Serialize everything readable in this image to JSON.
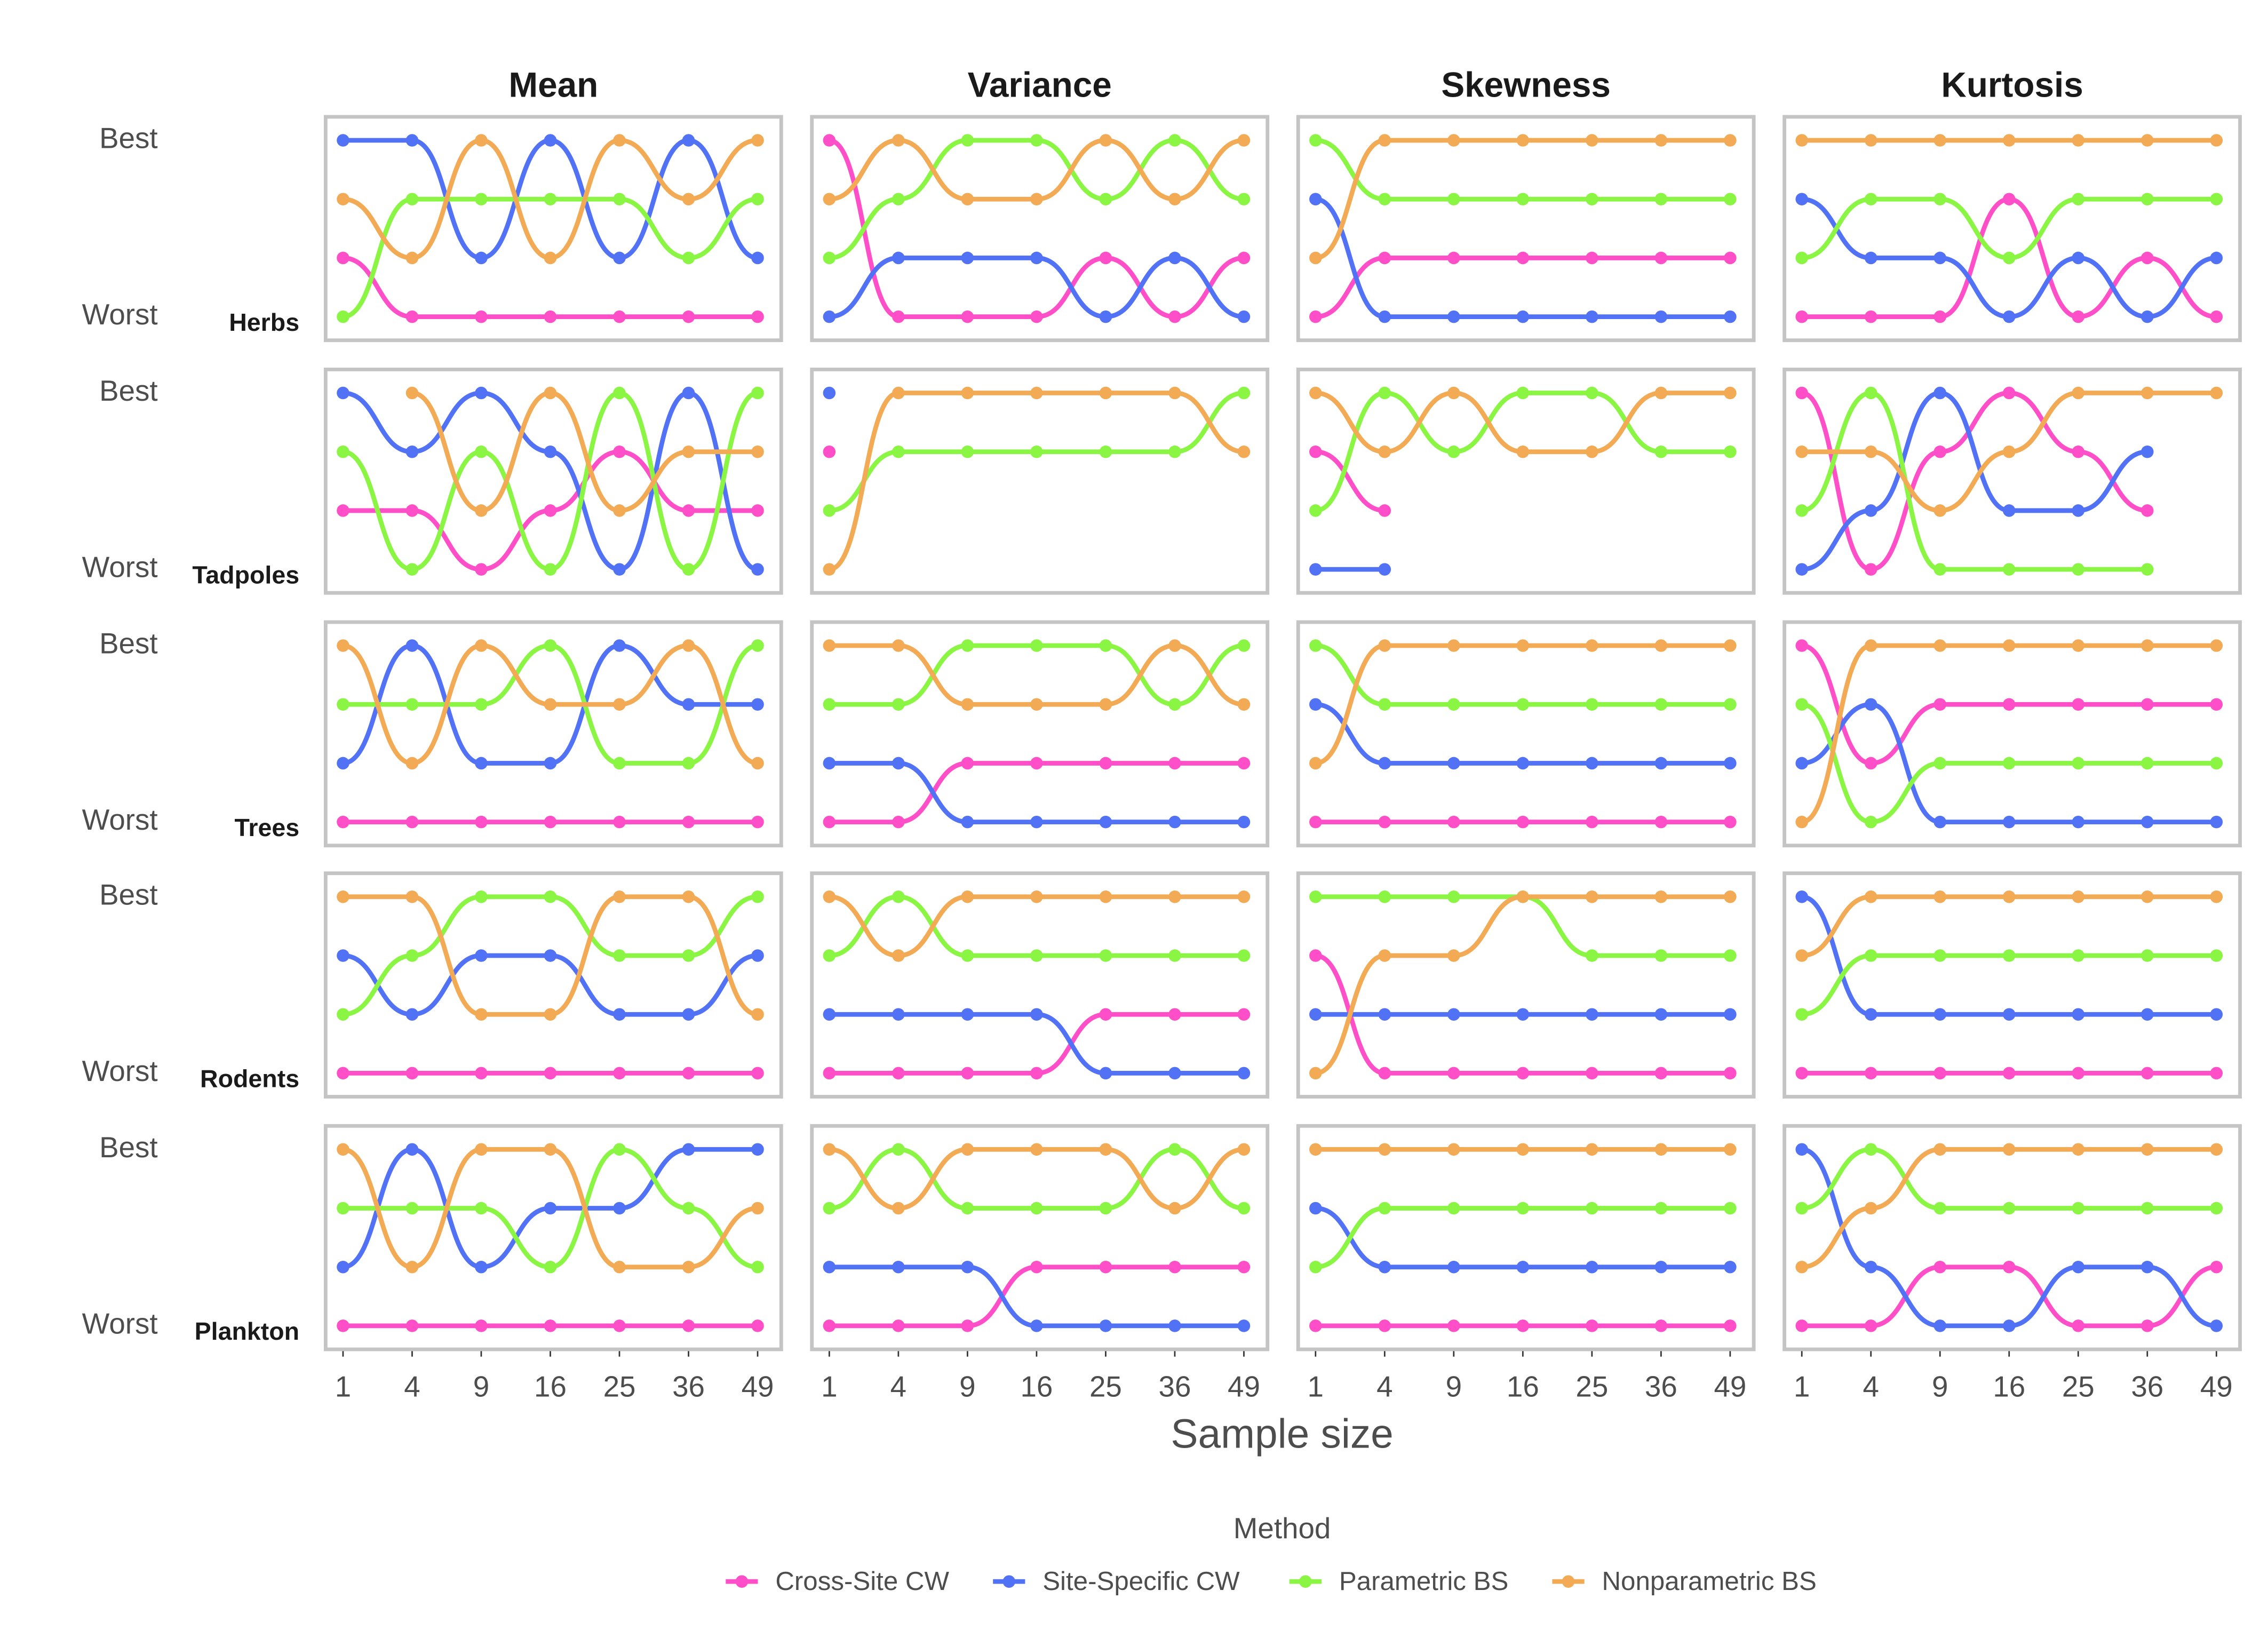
{
  "chart_data": {
    "type": "bump",
    "xlabel": "Sample size",
    "legend_title": "Method",
    "legend_position": "bottom",
    "xscale": "sqrt",
    "columns": [
      "Mean",
      "Variance",
      "Skewness",
      "Kurtosis"
    ],
    "rows": [
      "Herbs",
      "Tadpoles",
      "Trees",
      "Rodents",
      "Plankton"
    ],
    "x": [
      1,
      4,
      9,
      16,
      25,
      36,
      49
    ],
    "xlim": [
      0.56,
      53.9
    ],
    "xticks": [
      1,
      4,
      9,
      16,
      25,
      36,
      49
    ],
    "ylim": [
      4.4,
      0.6
    ],
    "yticks": [
      {
        "value": 1,
        "label": "Best"
      },
      {
        "value": 4,
        "label": "Worst"
      }
    ],
    "series": [
      {
        "name": "Cross-Site CW",
        "color": "#ff4fc8"
      },
      {
        "name": "Site-Specific CW",
        "color": "#5272f5"
      },
      {
        "name": "Parametric BS",
        "color": "#8af542"
      },
      {
        "name": "Nonparametric BS",
        "color": "#f2aa55"
      }
    ],
    "panels": [
      [
        [
          [
            3,
            4,
            4,
            4,
            4,
            4,
            4
          ],
          [
            1,
            1,
            3,
            1,
            3,
            1,
            3
          ],
          [
            4,
            2,
            2,
            2,
            2,
            3,
            2
          ],
          [
            2,
            3,
            1,
            3,
            1,
            2,
            1
          ]
        ],
        [
          [
            1,
            4,
            4,
            4,
            3,
            4,
            3
          ],
          [
            4,
            3,
            3,
            3,
            4,
            3,
            4
          ],
          [
            3,
            2,
            1,
            1,
            2,
            1,
            2
          ],
          [
            2,
            1,
            2,
            2,
            1,
            2,
            1
          ]
        ],
        [
          [
            4,
            3,
            3,
            3,
            3,
            3,
            3
          ],
          [
            2,
            4,
            4,
            4,
            4,
            4,
            4
          ],
          [
            1,
            2,
            2,
            2,
            2,
            2,
            2
          ],
          [
            3,
            1,
            1,
            1,
            1,
            1,
            1
          ]
        ],
        [
          [
            4,
            4,
            4,
            2,
            4,
            3,
            4
          ],
          [
            2,
            3,
            3,
            4,
            3,
            4,
            3
          ],
          [
            3,
            2,
            2,
            3,
            2,
            2,
            2
          ],
          [
            1,
            1,
            1,
            1,
            1,
            1,
            1
          ]
        ]
      ],
      [
        [
          [
            3,
            3,
            4,
            3,
            2,
            3,
            3
          ],
          [
            1,
            2,
            1,
            2,
            4,
            1,
            4
          ],
          [
            2,
            4,
            2,
            4,
            1,
            4,
            1
          ],
          [
            null,
            1,
            3,
            1,
            3,
            2,
            2
          ]
        ],
        [
          [
            2,
            null,
            null,
            null,
            null,
            null,
            null
          ],
          [
            1,
            null,
            null,
            null,
            null,
            null,
            null
          ],
          [
            3,
            2,
            2,
            2,
            2,
            2,
            1
          ],
          [
            4,
            1,
            1,
            1,
            1,
            1,
            2
          ]
        ],
        [
          [
            2,
            3,
            null,
            null,
            null,
            null,
            null
          ],
          [
            4,
            4,
            null,
            null,
            null,
            null,
            null
          ],
          [
            3,
            1,
            2,
            1,
            1,
            2,
            2
          ],
          [
            1,
            2,
            1,
            2,
            2,
            1,
            1
          ]
        ],
        [
          [
            1,
            4,
            2,
            1,
            2,
            3,
            null
          ],
          [
            4,
            3,
            1,
            3,
            3,
            2,
            null
          ],
          [
            3,
            1,
            4,
            4,
            4,
            4,
            null
          ],
          [
            2,
            2,
            3,
            2,
            1,
            1,
            1
          ]
        ]
      ],
      [
        [
          [
            4,
            4,
            4,
            4,
            4,
            4,
            4
          ],
          [
            3,
            1,
            3,
            3,
            1,
            2,
            2
          ],
          [
            2,
            2,
            2,
            1,
            3,
            3,
            1
          ],
          [
            1,
            3,
            1,
            2,
            2,
            1,
            3
          ]
        ],
        [
          [
            4,
            4,
            3,
            3,
            3,
            3,
            3
          ],
          [
            3,
            3,
            4,
            4,
            4,
            4,
            4
          ],
          [
            2,
            2,
            1,
            1,
            1,
            2,
            1
          ],
          [
            1,
            1,
            2,
            2,
            2,
            1,
            2
          ]
        ],
        [
          [
            4,
            4,
            4,
            4,
            4,
            4,
            4
          ],
          [
            2,
            3,
            3,
            3,
            3,
            3,
            3
          ],
          [
            1,
            2,
            2,
            2,
            2,
            2,
            2
          ],
          [
            3,
            1,
            1,
            1,
            1,
            1,
            1
          ]
        ],
        [
          [
            1,
            3,
            2,
            2,
            2,
            2,
            2
          ],
          [
            3,
            2,
            4,
            4,
            4,
            4,
            4
          ],
          [
            2,
            4,
            3,
            3,
            3,
            3,
            3
          ],
          [
            4,
            1,
            1,
            1,
            1,
            1,
            1
          ]
        ]
      ],
      [
        [
          [
            4,
            4,
            4,
            4,
            4,
            4,
            4
          ],
          [
            2,
            3,
            2,
            2,
            3,
            3,
            2
          ],
          [
            3,
            2,
            1,
            1,
            2,
            2,
            1
          ],
          [
            1,
            1,
            3,
            3,
            1,
            1,
            3
          ]
        ],
        [
          [
            4,
            4,
            4,
            4,
            3,
            3,
            3
          ],
          [
            3,
            3,
            3,
            3,
            4,
            4,
            4
          ],
          [
            2,
            1,
            2,
            2,
            2,
            2,
            2
          ],
          [
            1,
            2,
            1,
            1,
            1,
            1,
            1
          ]
        ],
        [
          [
            2,
            4,
            4,
            4,
            4,
            4,
            4
          ],
          [
            3,
            3,
            3,
            3,
            3,
            3,
            3
          ],
          [
            1,
            1,
            1,
            1,
            2,
            2,
            2
          ],
          [
            4,
            2,
            2,
            1,
            1,
            1,
            1
          ]
        ],
        [
          [
            4,
            4,
            4,
            4,
            4,
            4,
            4
          ],
          [
            1,
            3,
            3,
            3,
            3,
            3,
            3
          ],
          [
            3,
            2,
            2,
            2,
            2,
            2,
            2
          ],
          [
            2,
            1,
            1,
            1,
            1,
            1,
            1
          ]
        ]
      ],
      [
        [
          [
            4,
            4,
            4,
            4,
            4,
            4,
            4
          ],
          [
            3,
            1,
            3,
            2,
            2,
            1,
            1
          ],
          [
            2,
            2,
            2,
            3,
            1,
            2,
            3
          ],
          [
            1,
            3,
            1,
            1,
            3,
            3,
            2
          ]
        ],
        [
          [
            4,
            4,
            4,
            3,
            3,
            3,
            3
          ],
          [
            3,
            3,
            3,
            4,
            4,
            4,
            4
          ],
          [
            2,
            1,
            2,
            2,
            2,
            1,
            2
          ],
          [
            1,
            2,
            1,
            1,
            1,
            2,
            1
          ]
        ],
        [
          [
            4,
            4,
            4,
            4,
            4,
            4,
            4
          ],
          [
            2,
            3,
            3,
            3,
            3,
            3,
            3
          ],
          [
            3,
            2,
            2,
            2,
            2,
            2,
            2
          ],
          [
            1,
            1,
            1,
            1,
            1,
            1,
            1
          ]
        ],
        [
          [
            4,
            4,
            3,
            3,
            4,
            4,
            3
          ],
          [
            1,
            3,
            4,
            4,
            3,
            3,
            4
          ],
          [
            2,
            1,
            2,
            2,
            2,
            2,
            2
          ],
          [
            3,
            2,
            1,
            1,
            1,
            1,
            1
          ]
        ]
      ]
    ]
  }
}
